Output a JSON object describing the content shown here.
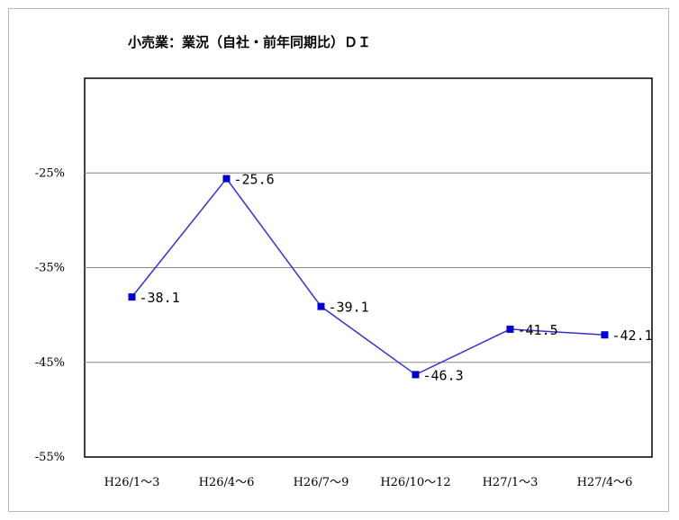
{
  "chart_data": {
    "type": "line",
    "title": "小売業：業況（自社・前年同期比）ＤＩ",
    "xlabel": "",
    "ylabel": "",
    "categories": [
      "H26/1～3",
      "H26/4～6",
      "H26/7～9",
      "H26/10～12",
      "H27/1～3",
      "H27/4～6"
    ],
    "series": [
      {
        "values": [
          -38.1,
          -25.6,
          -39.1,
          -46.3,
          -41.5,
          -42.1
        ],
        "data_labels": [
          "-38.1",
          "-25.6",
          "-39.1",
          "-46.3",
          "-41.5",
          "-42.1"
        ],
        "color": "#3333cc"
      }
    ],
    "ylim": [
      -55,
      -15
    ],
    "y_ticks": [
      -25,
      -35,
      -45,
      -55
    ],
    "y_tick_labels": [
      "-25%",
      "-35%",
      "-45%",
      "-55%"
    ],
    "grid": true,
    "legend": "none"
  }
}
